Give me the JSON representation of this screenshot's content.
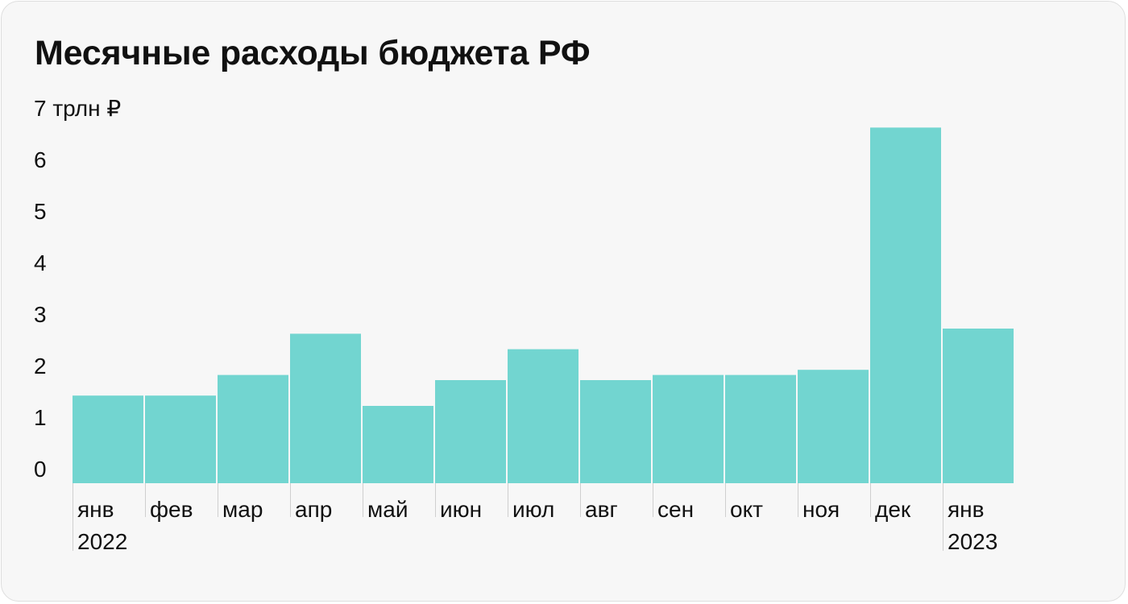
{
  "chart_data": {
    "type": "bar",
    "title": "Месячные расходы бюджета РФ",
    "unit_label": "7 трлн ₽",
    "categories": [
      "янв",
      "фев",
      "мар",
      "апр",
      "май",
      "июн",
      "июл",
      "авг",
      "сен",
      "окт",
      "ноя",
      "дек",
      "янв"
    ],
    "year_labels": [
      {
        "category_index": 0,
        "label": "2022"
      },
      {
        "category_index": 12,
        "label": "2023"
      }
    ],
    "values": [
      1.7,
      1.7,
      2.1,
      2.9,
      1.5,
      2.0,
      2.6,
      2.0,
      2.1,
      2.1,
      2.2,
      6.9,
      3.0
    ],
    "yticks": [
      "0",
      "1",
      "2",
      "3",
      "4",
      "5",
      "6",
      "7 трлн ₽"
    ],
    "ylim": [
      0,
      7
    ],
    "xlabel": "",
    "ylabel": "",
    "grid": false,
    "colors": {
      "bar": "#72d5d0",
      "text": "#111111",
      "tick": "#cfcfcf",
      "background": "#f7f7f7"
    }
  }
}
